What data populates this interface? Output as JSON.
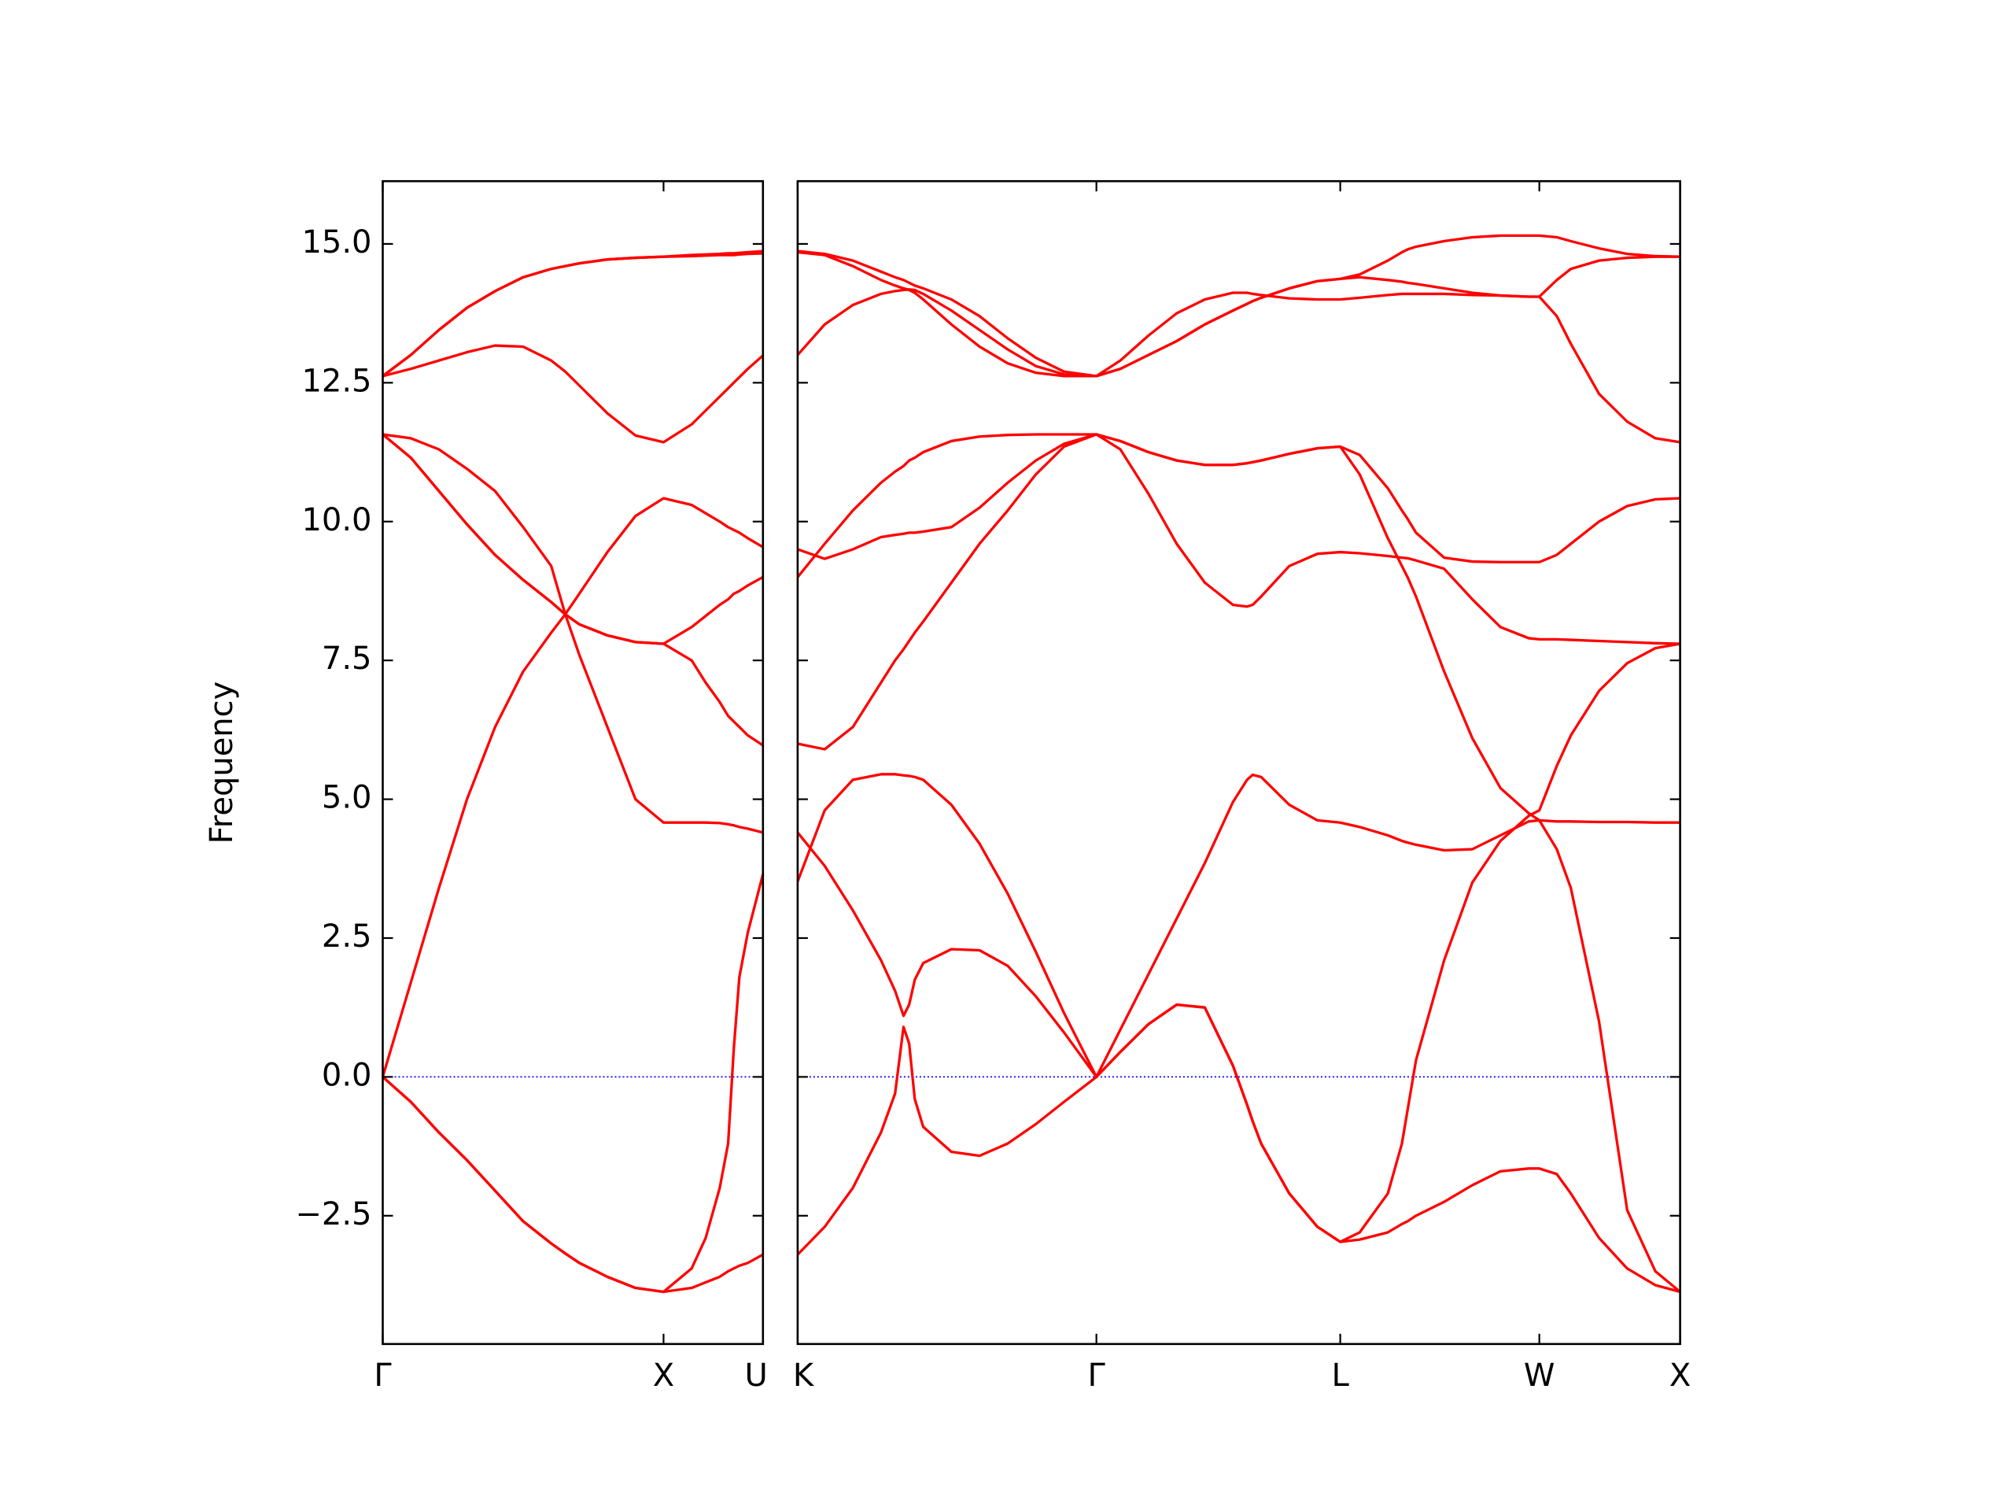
{
  "chart_data": [
    {
      "type": "line",
      "ylabel": "Frequency",
      "color": "#ff0000",
      "xlim": [
        0,
        1.354
      ],
      "xticks": [
        {
          "value": 0,
          "label": "Γ"
        },
        {
          "value": 1,
          "label": "X"
        },
        {
          "value": 1.354,
          "label": "U"
        }
      ],
      "ylim": [
        -4.81,
        16.13
      ],
      "yticks": [
        {
          "value": -2.5,
          "label": "−2.5"
        },
        {
          "value": 0,
          "label": "0.0"
        },
        {
          "value": 2.5,
          "label": "2.5"
        },
        {
          "value": 5,
          "label": "5.0"
        },
        {
          "value": 7.5,
          "label": "7.5"
        },
        {
          "value": 10,
          "label": "10.0"
        },
        {
          "value": 12.5,
          "label": "12.5"
        },
        {
          "value": 15,
          "label": "15.0"
        }
      ],
      "ytick_labels": true,
      "hline": {
        "y": 0,
        "color": "#0000ff",
        "style": "dotted"
      },
      "x": [
        0,
        0.1,
        0.2,
        0.3,
        0.4,
        0.5,
        0.6,
        0.65,
        0.7,
        0.8,
        0.9,
        1.0,
        1.1,
        1.15,
        1.2,
        1.23,
        1.25,
        1.27,
        1.3,
        1.354
      ],
      "series": [
        {
          "values": [
            0,
            -0.45,
            -1.0,
            -1.5,
            -2.05,
            -2.6,
            -3.0,
            -3.18,
            -3.35,
            -3.6,
            -3.8,
            -3.87,
            -3.45,
            -2.9,
            -2.0,
            -1.2,
            0.5,
            1.8,
            2.6,
            3.65
          ]
        },
        {
          "values": [
            0,
            -0.45,
            -1.0,
            -1.5,
            -2.05,
            -2.6,
            -3.0,
            -3.18,
            -3.35,
            -3.6,
            -3.8,
            -3.87,
            -3.8,
            -3.7,
            -3.6,
            -3.5,
            -3.45,
            -3.4,
            -3.35,
            -3.2
          ]
        },
        {
          "values": [
            0,
            1.7,
            3.4,
            5.0,
            6.3,
            7.3,
            8.0,
            8.33,
            8.7,
            9.45,
            10.1,
            10.42,
            10.3,
            10.15,
            10.0,
            9.9,
            9.85,
            9.8,
            9.7,
            9.54
          ]
        },
        {
          "values": [
            11.57,
            11.15,
            10.55,
            9.95,
            9.4,
            8.95,
            8.55,
            8.33,
            8.15,
            7.95,
            7.83,
            7.8,
            8.1,
            8.3,
            8.5,
            8.6,
            8.7,
            8.75,
            8.85,
            9.0
          ]
        },
        {
          "values": [
            11.57,
            11.15,
            10.55,
            9.95,
            9.4,
            8.95,
            8.55,
            8.33,
            8.15,
            7.95,
            7.83,
            7.8,
            7.5,
            7.1,
            6.75,
            6.5,
            6.4,
            6.3,
            6.15,
            5.97
          ]
        },
        {
          "values": [
            11.57,
            11.5,
            11.3,
            10.95,
            10.55,
            9.9,
            9.2,
            8.33,
            7.6,
            6.3,
            5.0,
            4.58,
            4.58,
            4.58,
            4.57,
            4.55,
            4.53,
            4.5,
            4.47,
            4.4
          ]
        },
        {
          "values": [
            12.62,
            13.0,
            13.45,
            13.85,
            14.15,
            14.4,
            14.55,
            14.6,
            14.65,
            14.72,
            14.75,
            14.77,
            14.78,
            14.79,
            14.8,
            14.8,
            14.8,
            14.81,
            14.82,
            14.83
          ]
        },
        {
          "values": [
            12.62,
            13.0,
            13.45,
            13.85,
            14.15,
            14.4,
            14.55,
            14.6,
            14.65,
            14.72,
            14.75,
            14.77,
            14.8,
            14.81,
            14.82,
            14.83,
            14.83,
            14.84,
            14.85,
            14.87
          ]
        },
        {
          "values": [
            12.62,
            12.75,
            12.9,
            13.05,
            13.17,
            13.15,
            12.9,
            12.7,
            12.45,
            11.95,
            11.55,
            11.43,
            11.75,
            12.0,
            12.25,
            12.4,
            12.5,
            12.6,
            12.75,
            12.99
          ]
        }
      ]
    },
    {
      "type": "line",
      "color": "#ff0000",
      "xlim": [
        1.354,
        4.488
      ],
      "xticks": [
        {
          "value": 1.354,
          "label": "K"
        },
        {
          "value": 2.415,
          "label": "Γ"
        },
        {
          "value": 3.281,
          "label": "L"
        },
        {
          "value": 3.988,
          "label": "W"
        },
        {
          "value": 4.488,
          "label": "X"
        }
      ],
      "ylim": [
        -4.81,
        16.13
      ],
      "yticks": [
        -2.5,
        0,
        2.5,
        5,
        7.5,
        10,
        12.5,
        15
      ],
      "ytick_labels": false,
      "hline": {
        "y": 0,
        "color": "#0000ff",
        "style": "dotted"
      },
      "x": [
        1.354,
        1.45,
        1.55,
        1.65,
        1.7,
        1.73,
        1.75,
        1.77,
        1.8,
        1.9,
        2.0,
        2.1,
        2.2,
        2.3,
        2.415,
        2.5,
        2.6,
        2.7,
        2.8,
        2.9,
        2.95,
        2.97,
        3.0,
        3.1,
        3.2,
        3.281,
        3.35,
        3.45,
        3.5,
        3.52,
        3.55,
        3.65,
        3.75,
        3.85,
        3.95,
        3.988,
        4.05,
        4.1,
        4.2,
        4.3,
        4.4,
        4.488
      ],
      "series": [
        {
          "values": [
            -3.2,
            -2.7,
            -2.0,
            -1.0,
            -0.3,
            0.9,
            0.6,
            -0.4,
            -0.9,
            -1.35,
            -1.42,
            -1.2,
            -0.85,
            -0.45,
            0,
            0.45,
            0.95,
            1.3,
            1.25,
            0.2,
            -0.5,
            -0.8,
            -1.2,
            -2.1,
            -2.7,
            -2.97,
            -2.93,
            -2.8,
            -2.65,
            -2.6,
            -2.5,
            -2.25,
            -1.95,
            -1.7,
            -1.65,
            -1.65,
            -1.75,
            -2.1,
            -2.9,
            -3.45,
            -3.75,
            -3.87
          ]
        },
        {
          "values": [
            4.4,
            3.8,
            3.0,
            2.1,
            1.55,
            1.1,
            1.3,
            1.75,
            2.05,
            2.3,
            2.28,
            2.0,
            1.45,
            0.8,
            0,
            0.85,
            1.85,
            2.85,
            3.85,
            4.95,
            5.35,
            5.44,
            5.4,
            4.9,
            4.62,
            4.58,
            4.5,
            4.35,
            4.25,
            4.22,
            4.18,
            4.08,
            4.1,
            4.35,
            4.6,
            4.62,
            4.6,
            4.6,
            4.59,
            4.59,
            4.58,
            4.58
          ]
        },
        {
          "values": [
            3.52,
            4.8,
            5.35,
            5.45,
            5.45,
            5.43,
            5.42,
            5.4,
            5.35,
            4.9,
            4.2,
            3.3,
            2.25,
            1.15,
            0,
            0.45,
            0.95,
            1.3,
            1.25,
            0.2,
            -0.5,
            -0.8,
            -1.2,
            -2.1,
            -2.7,
            -2.97,
            -2.8,
            -2.1,
            -1.2,
            -0.6,
            0.3,
            2.1,
            3.5,
            4.25,
            4.7,
            4.8,
            5.6,
            6.15,
            6.95,
            7.45,
            7.72,
            7.8
          ]
        },
        {
          "values": [
            6.0,
            5.9,
            6.3,
            7.1,
            7.5,
            7.7,
            7.85,
            8.0,
            8.2,
            8.9,
            9.6,
            10.2,
            10.85,
            11.35,
            11.57,
            11.3,
            10.5,
            9.6,
            8.9,
            8.5,
            8.47,
            8.5,
            8.65,
            9.2,
            9.42,
            9.45,
            9.43,
            9.38,
            9.35,
            9.34,
            9.3,
            9.15,
            8.6,
            8.1,
            7.9,
            7.88,
            7.88,
            7.87,
            7.85,
            7.83,
            7.81,
            7.8
          ]
        },
        {
          "values": [
            9.0,
            9.6,
            10.2,
            10.7,
            10.9,
            11.0,
            11.1,
            11.15,
            11.25,
            11.45,
            11.53,
            11.56,
            11.57,
            11.57,
            11.57,
            11.45,
            11.25,
            11.1,
            11.02,
            11.02,
            11.05,
            11.07,
            11.1,
            11.22,
            11.32,
            11.35,
            10.85,
            9.7,
            9.2,
            9.0,
            8.65,
            7.3,
            6.1,
            5.2,
            4.75,
            4.62,
            4.1,
            3.4,
            1.0,
            -2.4,
            -3.5,
            -3.87
          ]
        },
        {
          "values": [
            9.5,
            9.33,
            9.5,
            9.72,
            9.76,
            9.78,
            9.8,
            9.8,
            9.82,
            9.9,
            10.25,
            10.7,
            11.1,
            11.4,
            11.57,
            11.45,
            11.25,
            11.1,
            11.02,
            11.02,
            11.05,
            11.07,
            11.1,
            11.22,
            11.32,
            11.35,
            11.2,
            10.6,
            10.2,
            10.05,
            9.8,
            9.35,
            9.28,
            9.27,
            9.27,
            9.27,
            9.4,
            9.6,
            10.0,
            10.28,
            10.4,
            10.42
          ]
        },
        {
          "values": [
            13.0,
            13.55,
            13.9,
            14.1,
            14.15,
            14.17,
            14.18,
            14.17,
            14.1,
            13.8,
            13.45,
            13.1,
            12.8,
            12.65,
            12.62,
            12.9,
            13.35,
            13.75,
            14.0,
            14.12,
            14.12,
            14.1,
            14.08,
            14.02,
            14.0,
            14.0,
            14.03,
            14.08,
            14.1,
            14.1,
            14.1,
            14.1,
            14.08,
            14.07,
            14.05,
            14.05,
            14.35,
            14.55,
            14.7,
            14.75,
            14.77,
            14.77
          ]
        },
        {
          "values": [
            14.85,
            14.8,
            14.6,
            14.35,
            14.25,
            14.2,
            14.17,
            14.12,
            14.0,
            13.55,
            13.15,
            12.85,
            12.68,
            12.62,
            12.62,
            12.75,
            13.0,
            13.25,
            13.55,
            13.8,
            13.92,
            13.97,
            14.03,
            14.2,
            14.33,
            14.37,
            14.4,
            14.35,
            14.32,
            14.3,
            14.28,
            14.2,
            14.12,
            14.07,
            14.05,
            14.05,
            13.7,
            13.2,
            12.3,
            11.8,
            11.5,
            11.43
          ]
        },
        {
          "values": [
            14.87,
            14.82,
            14.7,
            14.5,
            14.4,
            14.35,
            14.3,
            14.25,
            14.2,
            14.0,
            13.7,
            13.3,
            12.95,
            12.7,
            12.62,
            12.75,
            13.0,
            13.25,
            13.55,
            13.8,
            13.92,
            13.97,
            14.03,
            14.2,
            14.33,
            14.37,
            14.45,
            14.7,
            14.85,
            14.9,
            14.95,
            15.05,
            15.12,
            15.15,
            15.15,
            15.15,
            15.12,
            15.05,
            14.92,
            14.82,
            14.78,
            14.77
          ]
        }
      ]
    }
  ]
}
